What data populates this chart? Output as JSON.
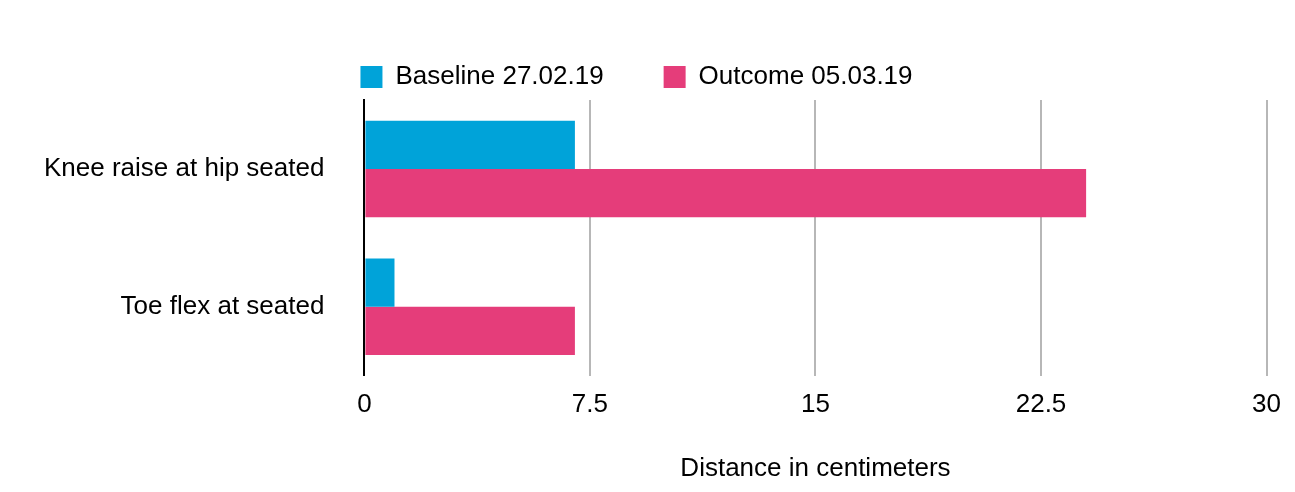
{
  "chart_data": {
    "type": "bar",
    "orientation": "horizontal",
    "categories": [
      "Knee raise at hip seated",
      "Toe flex at seated"
    ],
    "series": [
      {
        "name": "Baseline 27.02.19",
        "color": "#00a3d9",
        "values": [
          7,
          1
        ]
      },
      {
        "name": "Outcome 05.03.19",
        "color": "#e53d7a",
        "values": [
          24,
          7
        ]
      }
    ],
    "xlabel": "Distance in centimeters",
    "xlim": [
      0,
      30
    ],
    "xticks": [
      0,
      7.5,
      15,
      22.5,
      30
    ],
    "grid": "x",
    "legend": "top"
  }
}
